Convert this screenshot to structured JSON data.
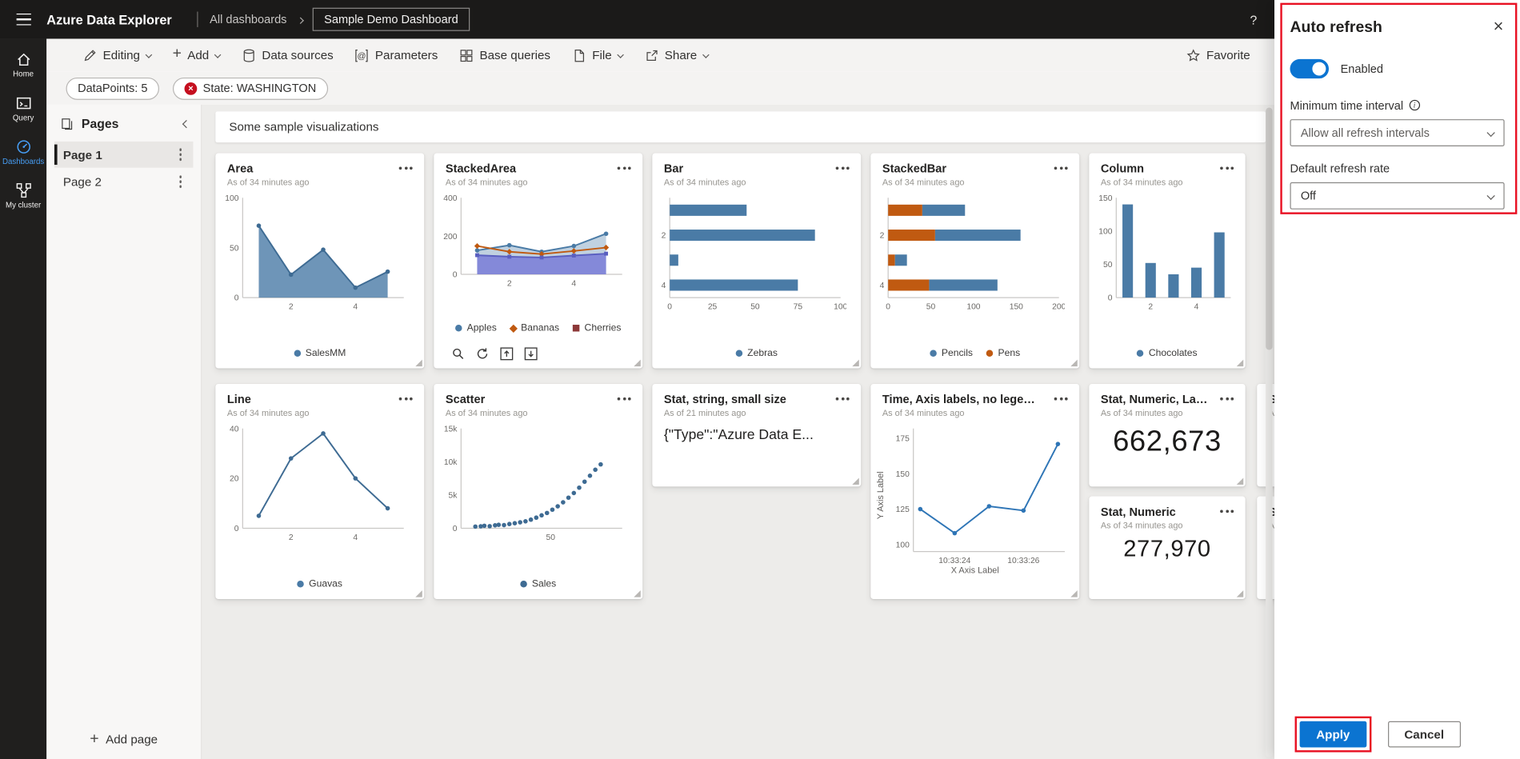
{
  "colors": {
    "accent": "#0078d4",
    "error": "#c50f1f",
    "annotation": "#e81123",
    "series_blue": "#4a7ba6",
    "series_orange": "#c05a11"
  },
  "topbar": {
    "app_title": "Azure Data Explorer",
    "breadcrumb": "All dashboards",
    "dashboard_name": "Sample Demo Dashboard",
    "help_label": "?"
  },
  "rail": {
    "items": [
      {
        "label": "Home"
      },
      {
        "label": "Query"
      },
      {
        "label": "Dashboards"
      },
      {
        "label": "My cluster"
      }
    ]
  },
  "toolbar": {
    "editing": "Editing",
    "add": "Add",
    "data_sources": "Data sources",
    "parameters": "Parameters",
    "base_queries": "Base queries",
    "file": "File",
    "share": "Share",
    "favorite": "Favorite"
  },
  "filters": {
    "datapoints": "DataPoints: 5",
    "state": "State: WASHINGTON"
  },
  "pages": {
    "title": "Pages",
    "items": [
      {
        "label": "Page 1"
      },
      {
        "label": "Page 2"
      }
    ],
    "add_label": "Add page"
  },
  "canvas": {
    "banner": "Some sample visualizations"
  },
  "tiles": {
    "stat_string": {
      "title": "Stat, string, small size",
      "as_of": "As of 21 minutes ago",
      "value": "{\"Type\":\"Azure Data E..."
    },
    "stat_large": {
      "title": "Stat, Numeric, Large",
      "as_of": "As of 34 minutes ago",
      "value": "662,673"
    },
    "stat": {
      "title": "Stat, Numeric",
      "as_of": "As of 34 minutes ago",
      "value": "277,970"
    },
    "clip_top": {
      "title": "St",
      "as_of": "As"
    },
    "clip_bottom": {
      "title": "St",
      "as_of": "As"
    }
  },
  "charts": {
    "area": {
      "type": "line",
      "title": "Area",
      "as_of": "As of 34 minutes ago",
      "ml": 26,
      "xlim": [
        0.5,
        5.5
      ],
      "ylim": [
        0,
        100
      ],
      "yticks": [
        {
          "v": 0,
          "t": "0"
        },
        {
          "v": 50,
          "t": "50"
        },
        {
          "v": 100,
          "t": "100"
        }
      ],
      "xticks": [
        {
          "v": 2,
          "t": "2"
        },
        {
          "v": 4,
          "t": "4"
        }
      ],
      "series": [
        {
          "color": "#4a7ba6",
          "line": "#3e6b93",
          "marker": "circle",
          "fill": true,
          "fillOpacity": 0.8,
          "points": [
            [
              1,
              72
            ],
            [
              2,
              23
            ],
            [
              3,
              48
            ],
            [
              4,
              10
            ],
            [
              5,
              26
            ]
          ]
        }
      ],
      "legend": [
        {
          "label": "SalesMM",
          "color": "#4a7ba6",
          "shape": "circle"
        }
      ]
    },
    "stackedarea": {
      "type": "line",
      "title": "StackedArea",
      "as_of": "As of 34 minutes ago",
      "ml": 26,
      "xlim": [
        0.5,
        5.5
      ],
      "ylim": [
        0,
        400
      ],
      "yticks": [
        {
          "v": 0,
          "t": "0"
        },
        {
          "v": 200,
          "t": "200"
        },
        {
          "v": 400,
          "t": "400"
        }
      ],
      "xticks": [
        {
          "v": 2,
          "t": "2"
        },
        {
          "v": 4,
          "t": "4"
        }
      ],
      "series": [
        {
          "color": "#4a7ba6",
          "marker": "circle",
          "fill": true,
          "fillOpacity": 0.35,
          "points": [
            [
              1,
              125
            ],
            [
              2,
              152
            ],
            [
              3,
              118
            ],
            [
              4,
              148
            ],
            [
              5,
              212
            ]
          ]
        },
        {
          "color": "#c05a11",
          "marker": "diamond",
          "points": [
            [
              1,
              148
            ],
            [
              2,
              118
            ],
            [
              3,
              106
            ],
            [
              4,
              122
            ],
            [
              5,
              140
            ]
          ]
        },
        {
          "color": "#7d81d8",
          "line": "#5a5fc0",
          "marker": "square",
          "fill": true,
          "fillOpacity": 0.9,
          "points": [
            [
              1,
              100
            ],
            [
              2,
              92
            ],
            [
              3,
              88
            ],
            [
              4,
              98
            ],
            [
              5,
              108
            ]
          ]
        }
      ],
      "legend": [
        {
          "label": "Apples",
          "color": "#4a7ba6",
          "shape": "circle"
        },
        {
          "label": "Bananas",
          "color": "#c05a11",
          "shape": "diamond"
        },
        {
          "label": "Cherries",
          "color": "#8c3838",
          "shape": "square"
        }
      ]
    },
    "bar": {
      "type": "barh",
      "title": "Bar",
      "as_of": "As of 34 minutes ago",
      "ml": 16,
      "xlim": [
        0,
        100
      ],
      "xticks": [
        {
          "v": 0,
          "t": "0"
        },
        {
          "v": 25,
          "t": "25"
        },
        {
          "v": 50,
          "t": "50"
        },
        {
          "v": 75,
          "t": "75"
        },
        {
          "v": 100,
          "t": "100"
        }
      ],
      "bars": [
        45,
        85,
        5,
        75
      ],
      "cat_ticks": [
        {
          "i": 1,
          "t": "2"
        },
        {
          "i": 3,
          "t": "4"
        }
      ],
      "colors": [
        "#4a7ba6"
      ],
      "legend": [
        {
          "label": "Zebras",
          "color": "#4a7ba6",
          "shape": "circle"
        }
      ]
    },
    "stackedbar": {
      "type": "barh",
      "title": "StackedBar",
      "as_of": "As of 34 minutes ago",
      "ml": 16,
      "xlim": [
        0,
        200
      ],
      "xticks": [
        {
          "v": 0,
          "t": "0"
        },
        {
          "v": 50,
          "t": "50"
        },
        {
          "v": 100,
          "t": "100"
        },
        {
          "v": 150,
          "t": "150"
        },
        {
          "v": 200,
          "t": "200"
        }
      ],
      "bars": [
        [
          40,
          50
        ],
        [
          55,
          100
        ],
        [
          8,
          14
        ],
        [
          48,
          80
        ]
      ],
      "cat_ticks": [
        {
          "i": 1,
          "t": "2"
        },
        {
          "i": 3,
          "t": "4"
        }
      ],
      "colors": [
        "#c05a11",
        "#4a7ba6"
      ],
      "legend": [
        {
          "label": "Pencils",
          "color": "#4a7ba6",
          "shape": "circle"
        },
        {
          "label": "Pens",
          "color": "#c05a11",
          "shape": "circle"
        }
      ]
    },
    "column": {
      "type": "column",
      "title": "Column",
      "as_of": "As of 34 minutes ago",
      "ml": 26,
      "xlim": [
        0.5,
        5.5
      ],
      "ylim": [
        0,
        150
      ],
      "yticks": [
        {
          "v": 0,
          "t": "0"
        },
        {
          "v": 50,
          "t": "50"
        },
        {
          "v": 100,
          "t": "100"
        },
        {
          "v": 150,
          "t": "150"
        }
      ],
      "xticks": [
        {
          "v": 2,
          "t": "2"
        },
        {
          "v": 4,
          "t": "4"
        }
      ],
      "values": [
        140,
        52,
        35,
        45,
        98
      ],
      "colors": [
        "#4a7ba6"
      ],
      "legend": [
        {
          "label": "Chocolates",
          "color": "#4a7ba6",
          "shape": "circle"
        }
      ]
    },
    "line": {
      "type": "line",
      "title": "Line",
      "as_of": "As of 34 minutes ago",
      "ml": 26,
      "xlim": [
        0.5,
        5.5
      ],
      "ylim": [
        0,
        40
      ],
      "yticks": [
        {
          "v": 0,
          "t": "0"
        },
        {
          "v": 20,
          "t": "20"
        },
        {
          "v": 40,
          "t": "40"
        }
      ],
      "xticks": [
        {
          "v": 2,
          "t": "2"
        },
        {
          "v": 4,
          "t": "4"
        }
      ],
      "series": [
        {
          "color": "#4a7ba6",
          "line": "#3e6b93",
          "marker": "circle",
          "points": [
            [
              1,
              5
            ],
            [
              2,
              28
            ],
            [
              3,
              38
            ],
            [
              4,
              20
            ],
            [
              5,
              8
            ]
          ]
        }
      ],
      "legend": [
        {
          "label": "Guavas",
          "color": "#4a7ba6",
          "shape": "circle"
        }
      ]
    },
    "scatter": {
      "type": "line",
      "title": "Scatter",
      "as_of": "As of 34 minutes ago",
      "ml": 26,
      "xlim": [
        0,
        90
      ],
      "ylim": [
        0,
        15000
      ],
      "yticks": [
        {
          "v": 0,
          "t": "0"
        },
        {
          "v": 5000,
          "t": "5k"
        },
        {
          "v": 10000,
          "t": "10k"
        },
        {
          "v": 15000,
          "t": "15k"
        }
      ],
      "xticks": [
        {
          "v": 50,
          "t": "50"
        }
      ],
      "series": [
        {
          "color": "#3e6b93",
          "marker": "circle",
          "scatter": true,
          "points": [
            [
              8,
              260
            ],
            [
              11,
              300
            ],
            [
              13,
              380
            ],
            [
              16,
              320
            ],
            [
              19,
              450
            ],
            [
              21,
              520
            ],
            [
              24,
              480
            ],
            [
              27,
              640
            ],
            [
              30,
              760
            ],
            [
              33,
              900
            ],
            [
              36,
              1050
            ],
            [
              39,
              1300
            ],
            [
              42,
              1600
            ],
            [
              45,
              1950
            ],
            [
              48,
              2300
            ],
            [
              51,
              2800
            ],
            [
              54,
              3300
            ],
            [
              57,
              3900
            ],
            [
              60,
              4600
            ],
            [
              63,
              5300
            ],
            [
              66,
              6100
            ],
            [
              69,
              7000
            ],
            [
              72,
              7900
            ],
            [
              75,
              8800
            ],
            [
              78,
              9600
            ]
          ]
        }
      ],
      "legend": [
        {
          "label": "Sales",
          "color": "#3e6b93",
          "shape": "circle"
        }
      ]
    },
    "time": {
      "type": "line",
      "title": "Time, Axis labels, no legend",
      "as_of": "As of 34 minutes ago",
      "ml": 34,
      "xlim": [
        -0.2,
        4.2
      ],
      "ylim": [
        95,
        182
      ],
      "yticks": [
        {
          "v": 100,
          "t": "100"
        },
        {
          "v": 125,
          "t": "125"
        },
        {
          "v": 150,
          "t": "150"
        },
        {
          "v": 175,
          "t": "175"
        }
      ],
      "xticks": [
        {
          "v": 1,
          "t": "10:33:24"
        },
        {
          "v": 3,
          "t": "10:33:26"
        }
      ],
      "series": [
        {
          "color": "#2e75b6",
          "marker": "circle",
          "points": [
            [
              0,
              125
            ],
            [
              1,
              108
            ],
            [
              2,
              127
            ],
            [
              3,
              124
            ],
            [
              4,
              171
            ]
          ]
        }
      ],
      "ylabel": "Y Axis Label",
      "xlabel": "X Axis Label"
    }
  },
  "panel": {
    "title": "Auto refresh",
    "enabled": true,
    "enabled_label": "Enabled",
    "min_interval_label": "Minimum time interval",
    "min_interval_value": "Allow all refresh intervals",
    "default_rate_label": "Default refresh rate",
    "default_rate_value": "Off",
    "apply_label": "Apply",
    "cancel_label": "Cancel"
  }
}
